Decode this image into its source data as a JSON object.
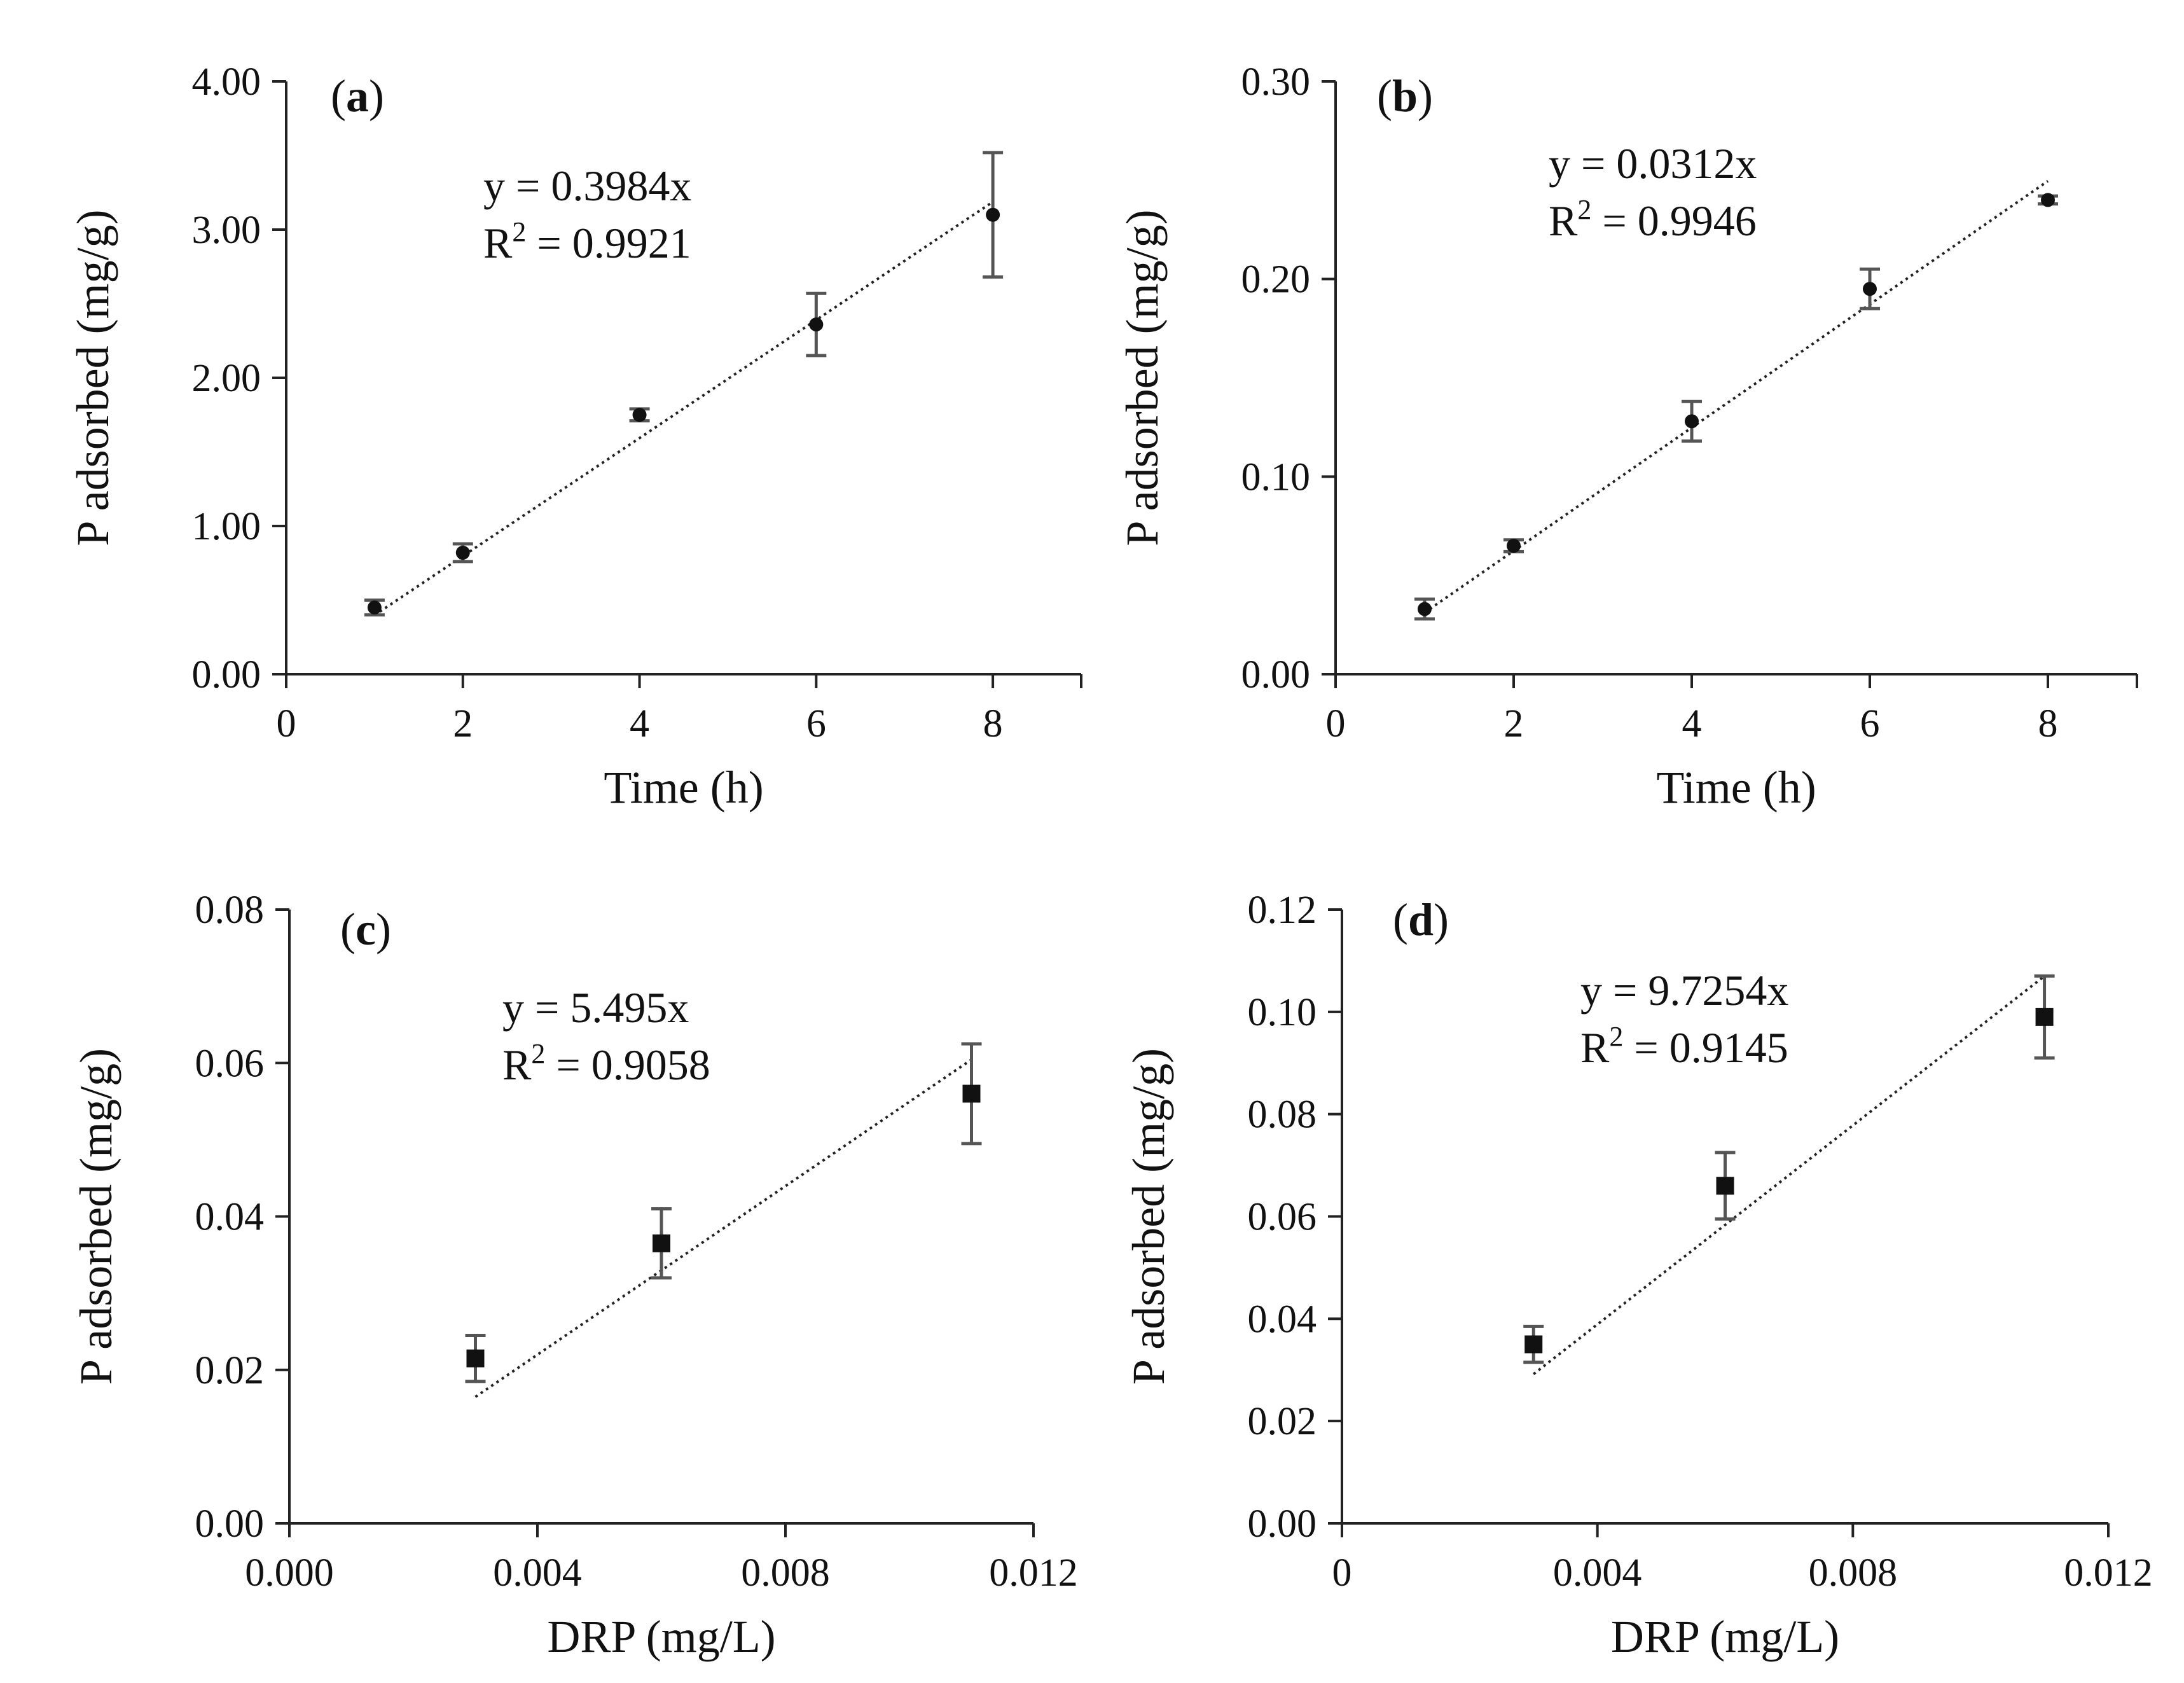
{
  "figure": {
    "colors": {
      "axis": "#222222",
      "marker": "#111111",
      "errorbar": "#555555",
      "trendline": "#222222"
    }
  },
  "chart_data": [
    {
      "panel": "a",
      "label_open": "(",
      "label_letter": "a",
      "label_close": ")",
      "type": "scatter",
      "marker": "circle",
      "xlabel": "Time (h)",
      "ylabel": "P adsorbed (mg/g)",
      "xlim": [
        0,
        9
      ],
      "ylim": [
        0,
        4
      ],
      "x_ticks": [
        0,
        2,
        4,
        6,
        8
      ],
      "x_tick_labels": [
        "0",
        "2",
        "4",
        "6",
        "8"
      ],
      "y_ticks": [
        0,
        1,
        2,
        3,
        4
      ],
      "y_tick_labels": [
        "0.00",
        "1.00",
        "2.00",
        "3.00",
        "4.00"
      ],
      "x": [
        1,
        2,
        4,
        6,
        8
      ],
      "y": [
        0.45,
        0.82,
        1.75,
        2.36,
        3.1
      ],
      "err": [
        0.05,
        0.06,
        0.04,
        0.21,
        0.42
      ],
      "trendline": {
        "slope": 0.3984,
        "x_range": [
          1,
          8
        ]
      },
      "equation": "y = 0.3984x",
      "r2_prefix": "R",
      "r2_exp": "2",
      "r2_value": " = 0.9921"
    },
    {
      "panel": "b",
      "label_open": "(",
      "label_letter": "b",
      "label_close": ")",
      "type": "scatter",
      "marker": "circle",
      "xlabel": "Time (h)",
      "ylabel": "P adsorbed (mg/g)",
      "xlim": [
        0,
        9
      ],
      "ylim": [
        0,
        0.3
      ],
      "x_ticks": [
        0,
        2,
        4,
        6,
        8
      ],
      "x_tick_labels": [
        "0",
        "2",
        "4",
        "6",
        "8"
      ],
      "y_ticks": [
        0,
        0.1,
        0.2,
        0.3
      ],
      "y_tick_labels": [
        "0.00",
        "0.10",
        "0.20",
        "0.30"
      ],
      "x": [
        1,
        2,
        4,
        6,
        8
      ],
      "y": [
        0.033,
        0.065,
        0.128,
        0.195,
        0.24
      ],
      "err": [
        0.005,
        0.003,
        0.01,
        0.01,
        0.002
      ],
      "trendline": {
        "slope": 0.0312,
        "x_range": [
          1,
          8
        ]
      },
      "equation": "y = 0.0312x",
      "r2_prefix": "R",
      "r2_exp": "2",
      "r2_value": " = 0.9946"
    },
    {
      "panel": "c",
      "label_open": "(",
      "label_letter": "c",
      "label_close": ")",
      "type": "scatter",
      "marker": "square",
      "xlabel": "DRP (mg/L)",
      "ylabel": "P adsorbed  (mg/g)",
      "xlim": [
        0,
        0.012
      ],
      "ylim": [
        0,
        0.08
      ],
      "x_ticks": [
        0,
        0.004,
        0.008,
        0.012
      ],
      "x_tick_labels": [
        "0.000",
        "0.004",
        "0.008",
        "0.012"
      ],
      "y_ticks": [
        0,
        0.02,
        0.04,
        0.06,
        0.08
      ],
      "y_tick_labels": [
        "0.00",
        "0.02",
        "0.04",
        "0.06",
        "0.08"
      ],
      "x": [
        0.003,
        0.006,
        0.011
      ],
      "y": [
        0.0215,
        0.0365,
        0.056
      ],
      "err": [
        0.003,
        0.0045,
        0.0065
      ],
      "trendline": {
        "slope": 5.495,
        "x_range": [
          0.003,
          0.011
        ]
      },
      "equation": "y = 5.495x",
      "r2_prefix": "R",
      "r2_exp": "2",
      "r2_value": " = 0.9058"
    },
    {
      "panel": "d",
      "label_open": "(",
      "label_letter": "d",
      "label_close": ")",
      "type": "scatter",
      "marker": "square",
      "xlabel": "DRP (mg/L)",
      "ylabel": "P adsorbed  (mg/g)",
      "xlim": [
        0,
        0.012
      ],
      "ylim": [
        0,
        0.12
      ],
      "x_ticks": [
        0,
        0.004,
        0.008,
        0.012
      ],
      "x_tick_labels": [
        "0",
        "0.004",
        "0.008",
        "0.012"
      ],
      "y_ticks": [
        0,
        0.02,
        0.04,
        0.06,
        0.08,
        0.1,
        0.12
      ],
      "y_tick_labels": [
        "0.00",
        "0.02",
        "0.04",
        "0.06",
        "0.08",
        "0.10",
        "0.12"
      ],
      "x": [
        0.003,
        0.006,
        0.011
      ],
      "y": [
        0.035,
        0.066,
        0.099
      ],
      "err": [
        0.0035,
        0.0065,
        0.008
      ],
      "trendline": {
        "slope": 9.7254,
        "x_range": [
          0.003,
          0.011
        ]
      },
      "equation": "y = 9.7254x",
      "r2_prefix": "R",
      "r2_exp": "2",
      "r2_value": " = 0.9145"
    }
  ]
}
